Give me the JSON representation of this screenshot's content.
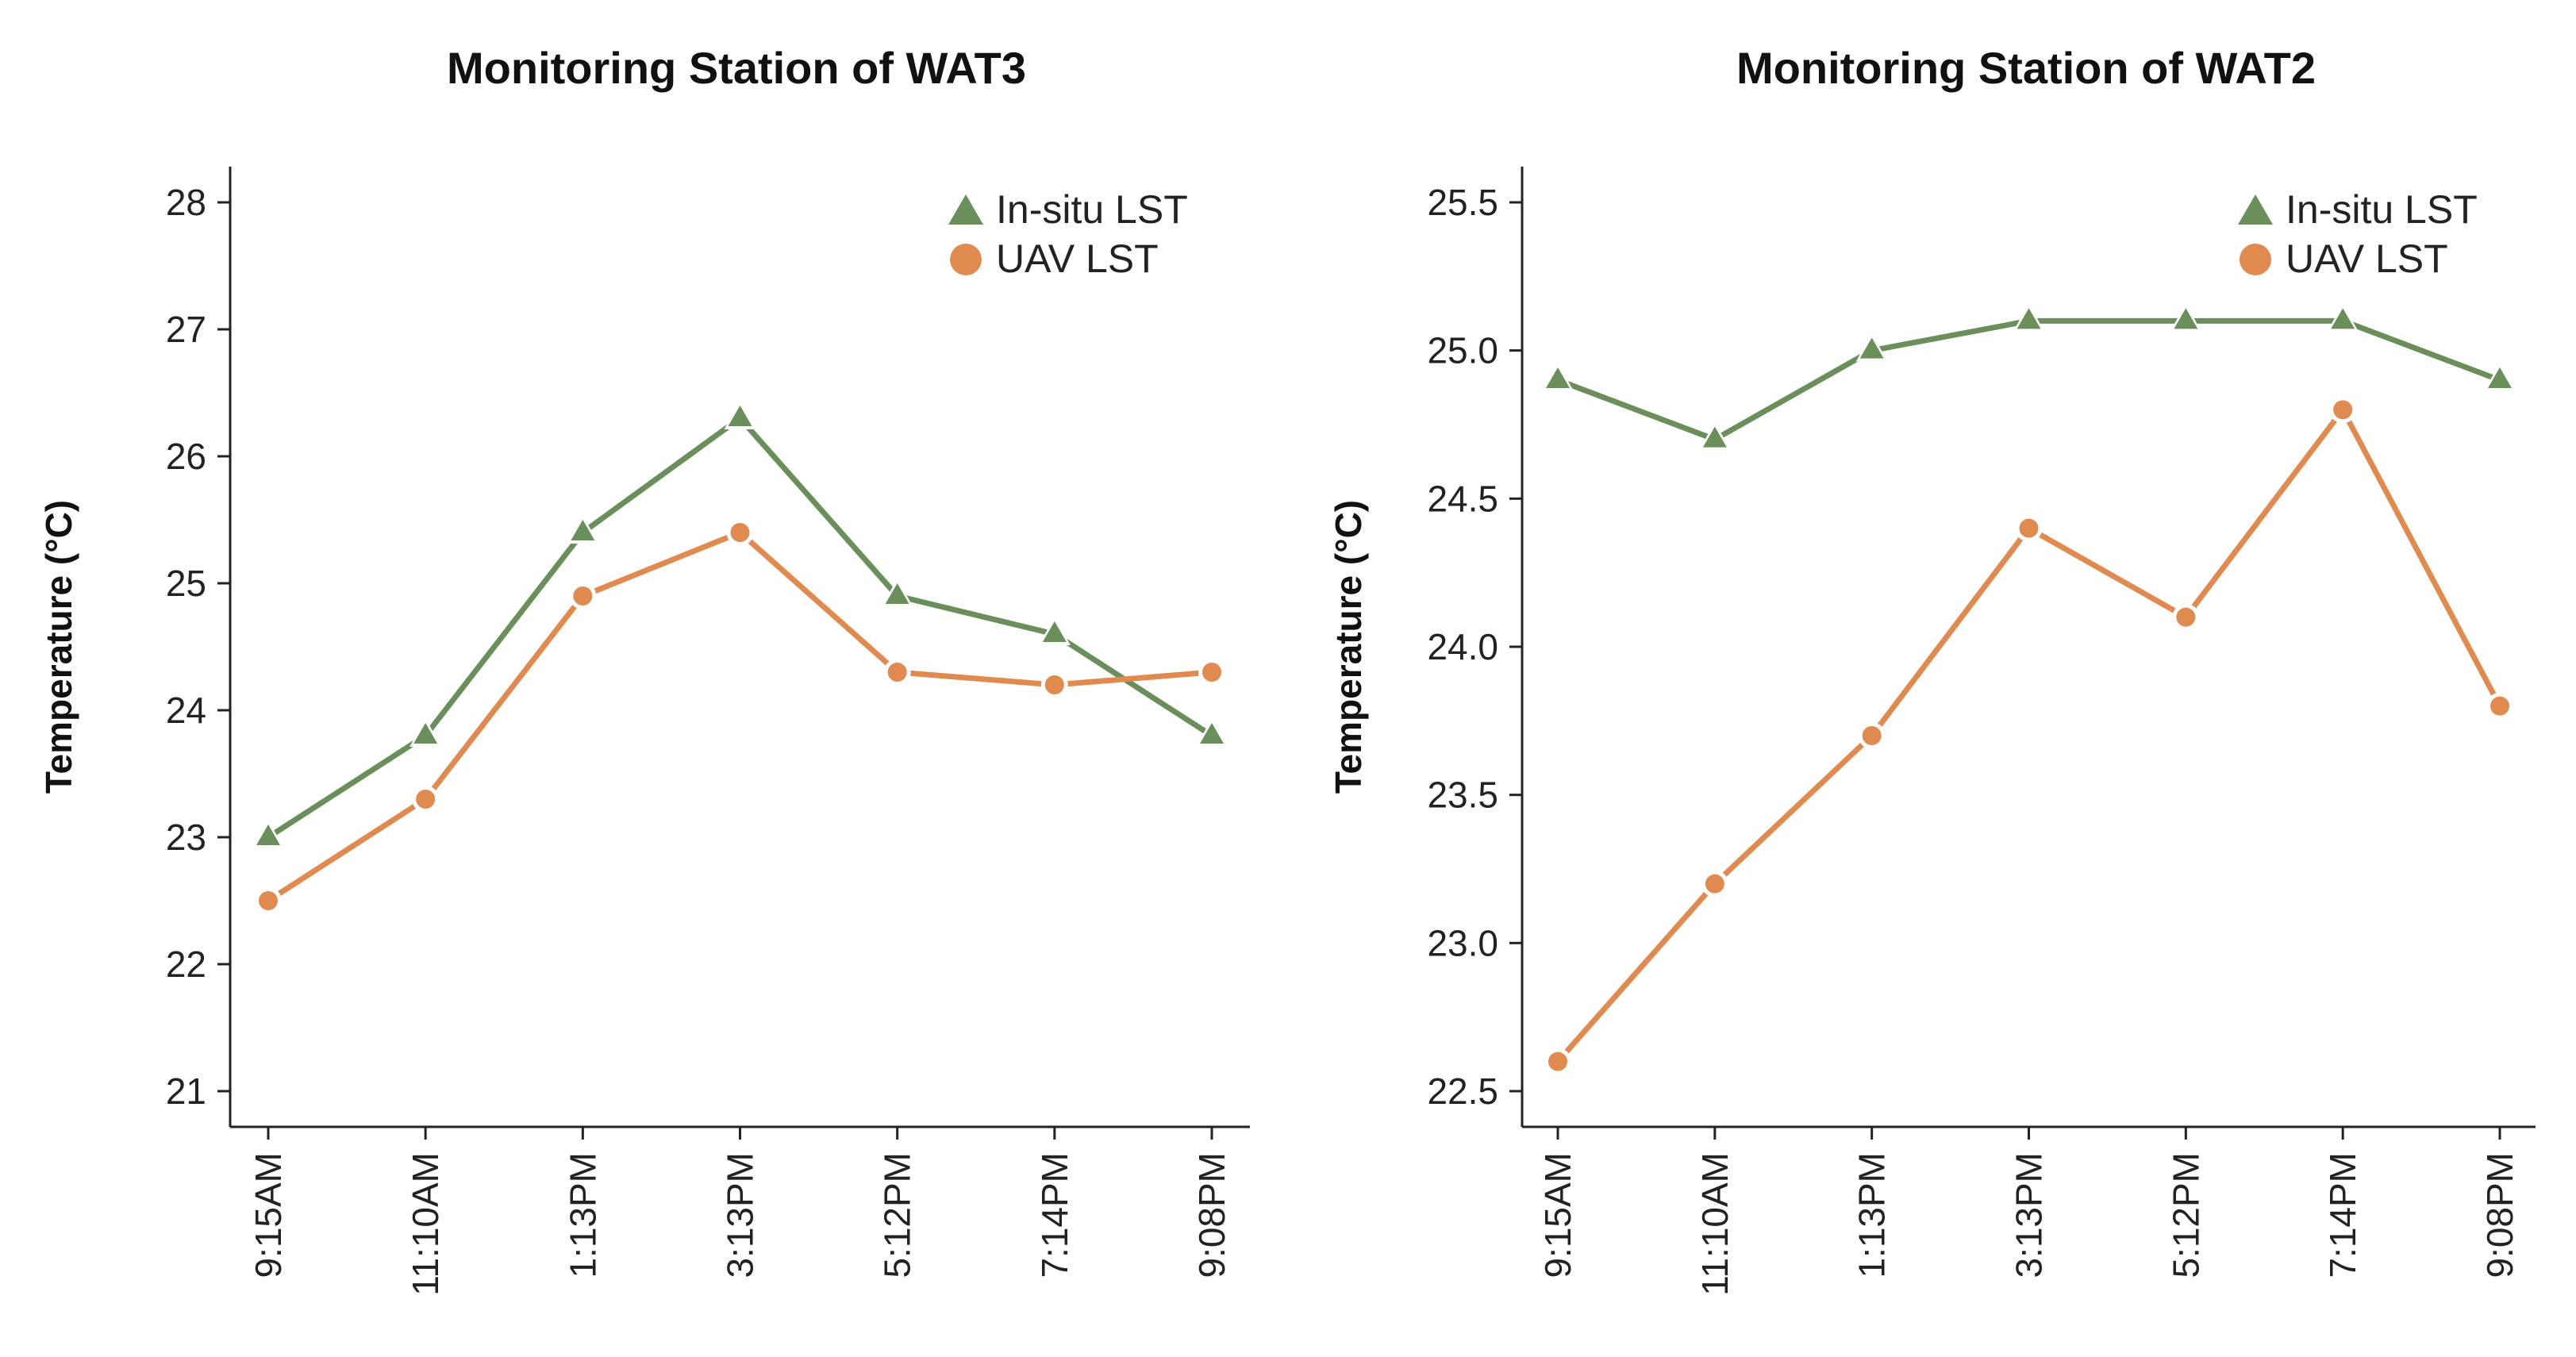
{
  "chart_data": [
    {
      "type": "line",
      "title": "Monitoring Station of WAT3",
      "ylabel": "Temperature (°C)",
      "xlabel": "",
      "categories": [
        "9:15AM",
        "11:10AM",
        "1:13PM",
        "3:13PM",
        "5:12PM",
        "7:14PM",
        "9:08PM"
      ],
      "ylim": [
        21,
        28
      ],
      "yticks": [
        "21",
        "22",
        "23",
        "24",
        "25",
        "26",
        "27",
        "28"
      ],
      "legend_position": "top-right",
      "series": [
        {
          "name": "In-situ LST",
          "marker": "triangle",
          "color": "#6a8f5a",
          "values": [
            23.0,
            23.8,
            25.4,
            26.3,
            24.9,
            24.6,
            23.8
          ]
        },
        {
          "name": "UAV LST",
          "marker": "circle",
          "color": "#e08a4f",
          "values": [
            22.5,
            23.3,
            24.9,
            25.4,
            24.3,
            24.2,
            24.3
          ]
        }
      ]
    },
    {
      "type": "line",
      "title": "Monitoring Station of WAT2",
      "ylabel": "Temperature (°C)",
      "xlabel": "",
      "categories": [
        "9:15AM",
        "11:10AM",
        "1:13PM",
        "3:13PM",
        "5:12PM",
        "7:14PM",
        "9:08PM"
      ],
      "ylim": [
        22.5,
        25.5
      ],
      "yticks": [
        "22.5",
        "23.0",
        "23.5",
        "24.0",
        "24.5",
        "25.0",
        "25.5"
      ],
      "legend_position": "top-right",
      "series": [
        {
          "name": "In-situ LST",
          "marker": "triangle",
          "color": "#6a8f5a",
          "values": [
            24.9,
            24.7,
            25.0,
            25.1,
            25.1,
            25.1,
            24.9
          ]
        },
        {
          "name": "UAV LST",
          "marker": "circle",
          "color": "#e08a4f",
          "values": [
            22.6,
            23.2,
            23.7,
            24.4,
            24.1,
            24.8,
            23.8
          ]
        }
      ]
    }
  ]
}
